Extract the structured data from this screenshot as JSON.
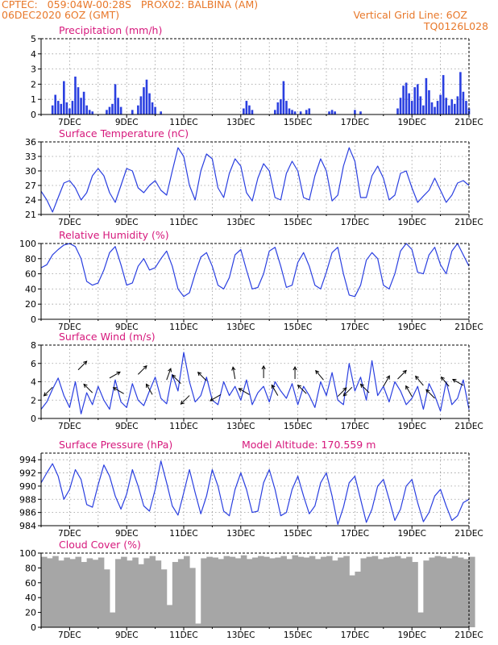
{
  "header": {
    "line1": "CPTEC:   059:04W-00:28S   PROX02: BALBINA (AM)",
    "line2_left": "06DEC2020 6OZ (GMT)",
    "line2_right": "Vertical Grid Line: 6OZ",
    "code": "TQ0126L028"
  },
  "colors": {
    "header": "#e8782a",
    "title": "#d6187c",
    "series": "#2a3fe0",
    "cloud": "#a6a6a6"
  },
  "chart_data": [
    {
      "type": "bar",
      "title": "Precipitation (mm/h)",
      "ylim": [
        0,
        5
      ],
      "yticks": [
        0,
        1,
        2,
        3,
        4,
        5
      ],
      "xticks": [
        "7DEC",
        "9DEC",
        "11DEC",
        "13DEC",
        "15DEC",
        "17DEC",
        "19DEC",
        "21DEC"
      ],
      "x_range_days": [
        6.0,
        21.0
      ],
      "grid": true,
      "x": [
        6.4,
        6.5,
        6.6,
        6.7,
        6.8,
        6.9,
        7.0,
        7.1,
        7.2,
        7.3,
        7.4,
        7.5,
        7.6,
        7.7,
        7.8,
        8.3,
        8.4,
        8.5,
        8.6,
        8.7,
        8.8,
        9.2,
        9.4,
        9.5,
        9.6,
        9.7,
        9.8,
        9.9,
        10.0,
        10.2,
        13.1,
        13.2,
        13.3,
        13.4,
        14.2,
        14.3,
        14.4,
        14.5,
        14.6,
        14.7,
        14.8,
        14.9,
        15.1,
        15.3,
        15.4,
        16.1,
        16.2,
        16.3,
        17.0,
        17.2,
        18.5,
        18.6,
        18.7,
        18.8,
        18.9,
        19.0,
        19.1,
        19.2,
        19.3,
        19.4,
        19.5,
        19.6,
        19.7,
        19.8,
        19.9,
        20.0,
        20.1,
        20.2,
        20.3,
        20.4,
        20.5,
        20.6,
        20.7,
        20.8,
        20.9,
        21.0
      ],
      "values": [
        0.6,
        1.3,
        0.9,
        0.7,
        2.2,
        0.8,
        0.4,
        0.9,
        2.5,
        1.8,
        1.1,
        1.5,
        0.6,
        0.3,
        0.2,
        0.3,
        0.5,
        0.7,
        2.0,
        1.1,
        0.5,
        0.3,
        0.6,
        1.2,
        1.8,
        2.3,
        1.4,
        0.8,
        0.5,
        0.2,
        0.4,
        0.9,
        0.6,
        0.3,
        0.3,
        0.8,
        1.0,
        2.2,
        0.9,
        0.4,
        0.3,
        0.2,
        0.2,
        0.3,
        0.4,
        0.2,
        0.3,
        0.2,
        0.3,
        0.2,
        0.4,
        1.1,
        1.9,
        2.1,
        1.4,
        0.9,
        1.8,
        2.0,
        1.2,
        0.6,
        2.4,
        1.6,
        0.8,
        0.5,
        0.9,
        1.3,
        2.6,
        1.1,
        0.6,
        1.0,
        0.7,
        1.2,
        2.8,
        1.5,
        0.9,
        0.4
      ]
    },
    {
      "type": "line",
      "title": "Surface Temperature (nC)",
      "ylim": [
        21,
        36
      ],
      "yticks": [
        21,
        24,
        27,
        30,
        33,
        36
      ],
      "xticks": [
        "7DEC",
        "9DEC",
        "11DEC",
        "13DEC",
        "15DEC",
        "17DEC",
        "19DEC",
        "21DEC"
      ],
      "x_range_days": [
        6.0,
        21.0
      ],
      "grid": true,
      "x": [
        6.0,
        6.2,
        6.4,
        6.6,
        6.8,
        7.0,
        7.2,
        7.4,
        7.6,
        7.8,
        8.0,
        8.2,
        8.4,
        8.6,
        8.8,
        9.0,
        9.2,
        9.4,
        9.6,
        9.8,
        10.0,
        10.2,
        10.4,
        10.6,
        10.8,
        11.0,
        11.2,
        11.4,
        11.6,
        11.8,
        12.0,
        12.2,
        12.4,
        12.6,
        12.8,
        13.0,
        13.2,
        13.4,
        13.6,
        13.8,
        14.0,
        14.2,
        14.4,
        14.6,
        14.8,
        15.0,
        15.2,
        15.4,
        15.6,
        15.8,
        16.0,
        16.2,
        16.4,
        16.6,
        16.8,
        17.0,
        17.2,
        17.4,
        17.6,
        17.8,
        18.0,
        18.2,
        18.4,
        18.6,
        18.8,
        19.0,
        19.2,
        19.4,
        19.6,
        19.8,
        20.0,
        20.2,
        20.4,
        20.6,
        20.8,
        21.0
      ],
      "values": [
        25.8,
        24.0,
        21.5,
        24.5,
        27.5,
        28.0,
        26.5,
        24.0,
        25.5,
        29.0,
        30.5,
        29.0,
        25.5,
        23.5,
        27.0,
        30.5,
        30.0,
        26.5,
        25.5,
        27.0,
        28.0,
        26.0,
        25.0,
        30.0,
        34.8,
        33.0,
        27.0,
        24.0,
        30.0,
        33.5,
        32.5,
        26.5,
        24.5,
        29.5,
        32.5,
        31.0,
        25.5,
        23.8,
        28.5,
        31.5,
        30.0,
        24.5,
        24.0,
        29.5,
        32.0,
        30.0,
        24.5,
        24.0,
        29.0,
        32.5,
        30.0,
        23.8,
        25.0,
        31.0,
        34.8,
        32.0,
        24.5,
        24.5,
        29.0,
        31.0,
        28.5,
        24.0,
        25.0,
        29.5,
        30.0,
        26.5,
        23.5,
        24.8,
        26.0,
        28.5,
        26.0,
        23.5,
        25.0,
        27.5,
        28.0,
        27.0
      ]
    },
    {
      "type": "line",
      "title": "Relative Humidity (%)",
      "ylim": [
        0,
        100
      ],
      "yticks": [
        0,
        20,
        40,
        60,
        80,
        100
      ],
      "xticks": [
        "7DEC",
        "9DEC",
        "11DEC",
        "13DEC",
        "15DEC",
        "17DEC",
        "19DEC",
        "21DEC"
      ],
      "x_range_days": [
        6.0,
        21.0
      ],
      "grid": true,
      "x": [
        6.0,
        6.2,
        6.4,
        6.6,
        6.8,
        7.0,
        7.2,
        7.4,
        7.6,
        7.8,
        8.0,
        8.2,
        8.4,
        8.6,
        8.8,
        9.0,
        9.2,
        9.4,
        9.6,
        9.8,
        10.0,
        10.2,
        10.4,
        10.6,
        10.8,
        11.0,
        11.2,
        11.4,
        11.6,
        11.8,
        12.0,
        12.2,
        12.4,
        12.6,
        12.8,
        13.0,
        13.2,
        13.4,
        13.6,
        13.8,
        14.0,
        14.2,
        14.4,
        14.6,
        14.8,
        15.0,
        15.2,
        15.4,
        15.6,
        15.8,
        16.0,
        16.2,
        16.4,
        16.6,
        16.8,
        17.0,
        17.2,
        17.4,
        17.6,
        17.8,
        18.0,
        18.2,
        18.4,
        18.6,
        18.8,
        19.0,
        19.2,
        19.4,
        19.6,
        19.8,
        20.0,
        20.2,
        20.4,
        20.6,
        20.8,
        21.0
      ],
      "values": [
        68,
        72,
        85,
        92,
        98,
        100,
        96,
        80,
        50,
        45,
        48,
        65,
        88,
        96,
        72,
        45,
        48,
        70,
        80,
        65,
        68,
        80,
        90,
        70,
        40,
        30,
        35,
        60,
        82,
        88,
        70,
        45,
        40,
        55,
        85,
        92,
        65,
        40,
        42,
        60,
        90,
        95,
        70,
        42,
        45,
        75,
        88,
        70,
        45,
        40,
        62,
        88,
        95,
        60,
        32,
        30,
        45,
        78,
        88,
        80,
        45,
        40,
        60,
        90,
        100,
        92,
        62,
        60,
        85,
        95,
        72,
        60,
        90,
        100,
        85,
        70
      ]
    },
    {
      "type": "line",
      "title": "Surface Wind (m/s)",
      "ylim": [
        0,
        8
      ],
      "yticks": [
        0,
        2,
        4,
        6,
        8
      ],
      "xticks": [
        "7DEC",
        "9DEC",
        "11DEC",
        "13DEC",
        "15DEC",
        "17DEC",
        "19DEC",
        "21DEC"
      ],
      "x_range_days": [
        6.0,
        21.0
      ],
      "grid": true,
      "annotations": "wind direction arrows",
      "x": [
        6.0,
        6.2,
        6.4,
        6.6,
        6.8,
        7.0,
        7.2,
        7.4,
        7.6,
        7.8,
        8.0,
        8.2,
        8.4,
        8.6,
        8.8,
        9.0,
        9.2,
        9.4,
        9.6,
        9.8,
        10.0,
        10.2,
        10.4,
        10.6,
        10.8,
        11.0,
        11.2,
        11.4,
        11.6,
        11.8,
        12.0,
        12.2,
        12.4,
        12.6,
        12.8,
        13.0,
        13.2,
        13.4,
        13.6,
        13.8,
        14.0,
        14.2,
        14.4,
        14.6,
        14.8,
        15.0,
        15.2,
        15.4,
        15.6,
        15.8,
        16.0,
        16.2,
        16.4,
        16.6,
        16.8,
        17.0,
        17.2,
        17.4,
        17.6,
        17.8,
        18.0,
        18.2,
        18.4,
        18.6,
        18.8,
        19.0,
        19.2,
        19.4,
        19.6,
        19.8,
        20.0,
        20.2,
        20.4,
        20.6,
        20.8,
        21.0
      ],
      "values": [
        1.0,
        1.8,
        3.2,
        4.4,
        2.5,
        1.2,
        4.0,
        0.5,
        2.8,
        1.5,
        3.5,
        2.0,
        1.0,
        4.2,
        1.8,
        1.2,
        3.8,
        2.0,
        1.4,
        3.0,
        4.5,
        2.2,
        1.6,
        4.8,
        3.0,
        7.2,
        4.0,
        1.8,
        2.5,
        4.5,
        2.0,
        1.5,
        4.0,
        2.5,
        3.5,
        2.0,
        4.2,
        1.5,
        2.8,
        3.5,
        1.8,
        4.0,
        3.0,
        2.2,
        3.8,
        1.5,
        3.5,
        2.5,
        1.2,
        4.0,
        2.5,
        5.0,
        2.0,
        1.5,
        6.0,
        3.0,
        4.5,
        2.0,
        6.3,
        2.5,
        3.5,
        1.8,
        4.0,
        3.0,
        1.5,
        2.2,
        3.5,
        1.0,
        3.8,
        2.5,
        0.8,
        4.0,
        1.5,
        2.2,
        4.2,
        1.0
      ],
      "arrows": [
        {
          "x": 6.4,
          "y": 3.4,
          "dir": 225
        },
        {
          "x": 7.3,
          "y": 5.3,
          "dir": 45
        },
        {
          "x": 7.8,
          "y": 2.8,
          "dir": 315
        },
        {
          "x": 8.4,
          "y": 4.4,
          "dir": 60
        },
        {
          "x": 8.9,
          "y": 2.7,
          "dir": 300
        },
        {
          "x": 9.4,
          "y": 4.8,
          "dir": 45
        },
        {
          "x": 9.9,
          "y": 2.6,
          "dir": 330
        },
        {
          "x": 10.4,
          "y": 4.2,
          "dir": 20
        },
        {
          "x": 10.9,
          "y": 3.8,
          "dir": 315
        },
        {
          "x": 11.2,
          "y": 2.5,
          "dir": 225
        },
        {
          "x": 11.8,
          "y": 4.1,
          "dir": 315
        },
        {
          "x": 12.3,
          "y": 2.6,
          "dir": 240
        },
        {
          "x": 12.8,
          "y": 4.3,
          "dir": 350
        },
        {
          "x": 13.3,
          "y": 2.6,
          "dir": 300
        },
        {
          "x": 13.8,
          "y": 4.4,
          "dir": 0
        },
        {
          "x": 14.3,
          "y": 2.5,
          "dir": 330
        },
        {
          "x": 14.9,
          "y": 4.3,
          "dir": 0
        },
        {
          "x": 15.3,
          "y": 2.7,
          "dir": 315
        },
        {
          "x": 15.9,
          "y": 4.2,
          "dir": 320
        },
        {
          "x": 16.4,
          "y": 2.4,
          "dir": 45
        },
        {
          "x": 16.9,
          "y": 3.4,
          "dir": 225
        },
        {
          "x": 17.5,
          "y": 2.8,
          "dir": 315
        },
        {
          "x": 18.0,
          "y": 3.5,
          "dir": 30
        },
        {
          "x": 18.5,
          "y": 4.3,
          "dir": 45
        },
        {
          "x": 19.0,
          "y": 2.4,
          "dir": 330
        },
        {
          "x": 19.4,
          "y": 3.6,
          "dir": 320
        },
        {
          "x": 19.8,
          "y": 2.2,
          "dir": 315
        },
        {
          "x": 20.3,
          "y": 3.5,
          "dir": 320
        },
        {
          "x": 20.8,
          "y": 3.6,
          "dir": 300
        }
      ]
    },
    {
      "type": "line",
      "title": "Surface Pressure (hPa)",
      "subtitle": "Model Altitude: 170.559 m",
      "ylim": [
        984,
        995
      ],
      "yticks": [
        984,
        986,
        988,
        990,
        992,
        994
      ],
      "xticks": [
        "7DEC",
        "9DEC",
        "11DEC",
        "13DEC",
        "15DEC",
        "17DEC",
        "19DEC",
        "21DEC"
      ],
      "x_range_days": [
        6.0,
        21.0
      ],
      "grid": true,
      "x": [
        6.0,
        6.2,
        6.4,
        6.6,
        6.8,
        7.0,
        7.2,
        7.4,
        7.6,
        7.8,
        8.0,
        8.2,
        8.4,
        8.6,
        8.8,
        9.0,
        9.2,
        9.4,
        9.6,
        9.8,
        10.0,
        10.2,
        10.4,
        10.6,
        10.8,
        11.0,
        11.2,
        11.4,
        11.6,
        11.8,
        12.0,
        12.2,
        12.4,
        12.6,
        12.8,
        13.0,
        13.2,
        13.4,
        13.6,
        13.8,
        14.0,
        14.2,
        14.4,
        14.6,
        14.8,
        15.0,
        15.2,
        15.4,
        15.6,
        15.8,
        16.0,
        16.2,
        16.4,
        16.6,
        16.8,
        17.0,
        17.2,
        17.4,
        17.6,
        17.8,
        18.0,
        18.2,
        18.4,
        18.6,
        18.8,
        19.0,
        19.2,
        19.4,
        19.6,
        19.8,
        20.0,
        20.2,
        20.4,
        20.6,
        20.8,
        21.0
      ],
      "values": [
        990.5,
        992.0,
        993.4,
        991.5,
        988.0,
        989.5,
        992.5,
        991.0,
        987.2,
        986.8,
        990.2,
        993.2,
        991.5,
        988.5,
        986.5,
        988.8,
        992.5,
        990.0,
        987.0,
        986.2,
        989.5,
        993.8,
        990.5,
        987.0,
        985.6,
        989.0,
        992.5,
        989.0,
        985.8,
        988.5,
        992.5,
        990.0,
        986.2,
        985.5,
        989.5,
        992.0,
        989.5,
        986.0,
        986.2,
        990.5,
        992.5,
        989.5,
        985.5,
        986.0,
        989.5,
        991.5,
        988.5,
        985.8,
        987.0,
        990.5,
        992.0,
        988.5,
        984.2,
        986.8,
        990.5,
        991.5,
        988.0,
        984.5,
        986.5,
        990.0,
        991.0,
        988.0,
        984.8,
        986.5,
        990.0,
        991.0,
        987.5,
        984.6,
        986.0,
        988.5,
        989.5,
        987.0,
        984.8,
        985.5,
        987.5,
        988.0
      ]
    },
    {
      "type": "bar",
      "title": "Cloud Cover (%)",
      "ylim": [
        0,
        100
      ],
      "yticks": [
        0,
        20,
        40,
        60,
        80,
        100
      ],
      "xticks": [
        "7DEC",
        "9DEC",
        "11DEC",
        "13DEC",
        "15DEC",
        "17DEC",
        "19DEC",
        "21DEC"
      ],
      "x_range_days": [
        6.0,
        21.0
      ],
      "grid": false,
      "x": [
        6.0,
        6.2,
        6.4,
        6.6,
        6.8,
        7.0,
        7.2,
        7.4,
        7.6,
        7.8,
        8.0,
        8.2,
        8.4,
        8.6,
        8.8,
        9.0,
        9.2,
        9.4,
        9.6,
        9.8,
        10.0,
        10.2,
        10.4,
        10.6,
        10.8,
        11.0,
        11.2,
        11.4,
        11.6,
        11.8,
        12.0,
        12.2,
        12.4,
        12.6,
        12.8,
        13.0,
        13.2,
        13.4,
        13.6,
        13.8,
        14.0,
        14.2,
        14.4,
        14.6,
        14.8,
        15.0,
        15.2,
        15.4,
        15.6,
        15.8,
        16.0,
        16.2,
        16.4,
        16.6,
        16.8,
        17.0,
        17.2,
        17.4,
        17.6,
        17.8,
        18.0,
        18.2,
        18.4,
        18.6,
        18.8,
        19.0,
        19.2,
        19.4,
        19.6,
        19.8,
        20.0,
        20.2,
        20.4,
        20.6,
        20.8,
        21.0
      ],
      "values": [
        95,
        93,
        96,
        90,
        94,
        92,
        95,
        88,
        93,
        91,
        94,
        78,
        20,
        92,
        95,
        90,
        94,
        85,
        93,
        96,
        90,
        78,
        30,
        88,
        92,
        96,
        80,
        5,
        93,
        95,
        94,
        92,
        96,
        95,
        93,
        97,
        92,
        94,
        96,
        95,
        93,
        94,
        96,
        92,
        97,
        95,
        94,
        96,
        92,
        95,
        96,
        90,
        94,
        96,
        70,
        75,
        93,
        95,
        96,
        92,
        94,
        95,
        96,
        93,
        95,
        88,
        20,
        90,
        94,
        96,
        95,
        93,
        96,
        94,
        92,
        95
      ]
    }
  ]
}
